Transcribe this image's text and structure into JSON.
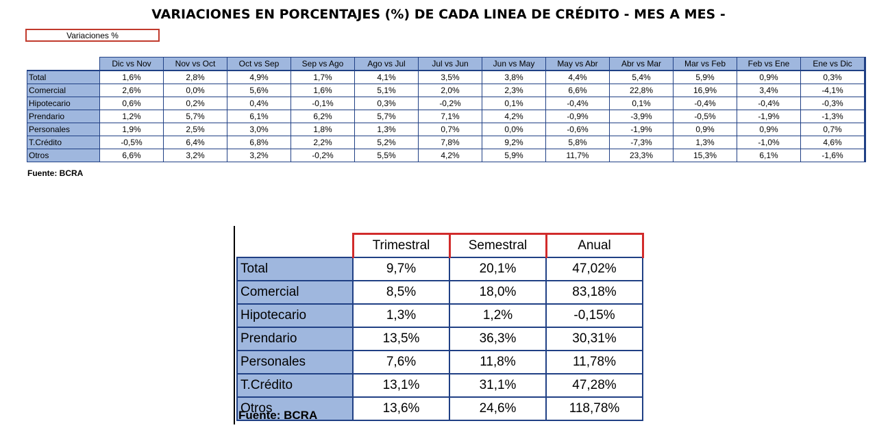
{
  "title": "VARIACIONES EN PORCENTAJES (%) DE CADA LINEA DE CRÉDITO - MES A MES -",
  "variaciones_label": "Variaciones %",
  "monthly_table": {
    "columns": [
      "Dic vs Nov",
      "Nov vs Oct",
      "Oct vs Sep",
      "Sep vs Ago",
      "Ago vs Jul",
      "Jul vs Jun",
      "Jun vs May",
      "May vs Abr",
      "Abr vs Mar",
      "Mar vs Feb",
      "Feb vs Ene",
      "Ene vs Dic"
    ],
    "rows": [
      {
        "label": "Total",
        "values": [
          "1,6%",
          "2,8%",
          "4,9%",
          "1,7%",
          "4,1%",
          "3,5%",
          "3,8%",
          "4,4%",
          "5,4%",
          "5,9%",
          "0,9%",
          "0,3%"
        ]
      },
      {
        "label": "Comercial",
        "values": [
          "2,6%",
          "0,0%",
          "5,6%",
          "1,6%",
          "5,1%",
          "2,0%",
          "2,3%",
          "6,6%",
          "22,8%",
          "16,9%",
          "3,4%",
          "-4,1%"
        ]
      },
      {
        "label": "Hipotecario",
        "values": [
          "0,6%",
          "0,2%",
          "0,4%",
          "-0,1%",
          "0,3%",
          "-0,2%",
          "0,1%",
          "-0,4%",
          "0,1%",
          "-0,4%",
          "-0,4%",
          "-0,3%"
        ]
      },
      {
        "label": "Prendario",
        "values": [
          "1,2%",
          "5,7%",
          "6,1%",
          "6,2%",
          "5,7%",
          "7,1%",
          "4,2%",
          "-0,9%",
          "-3,9%",
          "-0,5%",
          "-1,9%",
          "-1,3%"
        ]
      },
      {
        "label": "Personales",
        "values": [
          "1,9%",
          "2,5%",
          "3,0%",
          "1,8%",
          "1,3%",
          "0,7%",
          "0,0%",
          "-0,6%",
          "-1,9%",
          "0,9%",
          "0,9%",
          "0,7%"
        ]
      },
      {
        "label": "T.Crédito",
        "values": [
          "-0,5%",
          "6,4%",
          "6,8%",
          "2,2%",
          "5,2%",
          "7,8%",
          "9,2%",
          "5,8%",
          "-7,3%",
          "1,3%",
          "-1,0%",
          "4,6%"
        ]
      },
      {
        "label": "Otros",
        "values": [
          "6,6%",
          "3,2%",
          "3,2%",
          "-0,2%",
          "5,5%",
          "4,2%",
          "5,9%",
          "11,7%",
          "23,3%",
          "15,3%",
          "6,1%",
          "-1,6%"
        ]
      }
    ],
    "source": "Fuente: BCRA"
  },
  "period_table": {
    "columns": [
      "Trimestral",
      "Semestral",
      "Anual"
    ],
    "rows": [
      {
        "label": "Total",
        "values": [
          "9,7%",
          "20,1%",
          "47,02%"
        ]
      },
      {
        "label": "Comercial",
        "values": [
          "8,5%",
          "18,0%",
          "83,18%"
        ]
      },
      {
        "label": "Hipotecario",
        "values": [
          "1,3%",
          "1,2%",
          "-0,15%"
        ]
      },
      {
        "label": "Prendario",
        "values": [
          "13,5%",
          "36,3%",
          "30,31%"
        ]
      },
      {
        "label": "Personales",
        "values": [
          "7,6%",
          "11,8%",
          "11,78%"
        ]
      },
      {
        "label": "T.Crédito",
        "values": [
          "13,1%",
          "31,1%",
          "47,28%"
        ]
      },
      {
        "label": "Otros",
        "values": [
          "13,6%",
          "24,6%",
          "118,78%"
        ]
      }
    ],
    "source": "Fuente: BCRA"
  },
  "colors": {
    "header_fill": "#9fb7de",
    "border_blue": "#1f3f84",
    "accent_red": "#d12b2b"
  }
}
